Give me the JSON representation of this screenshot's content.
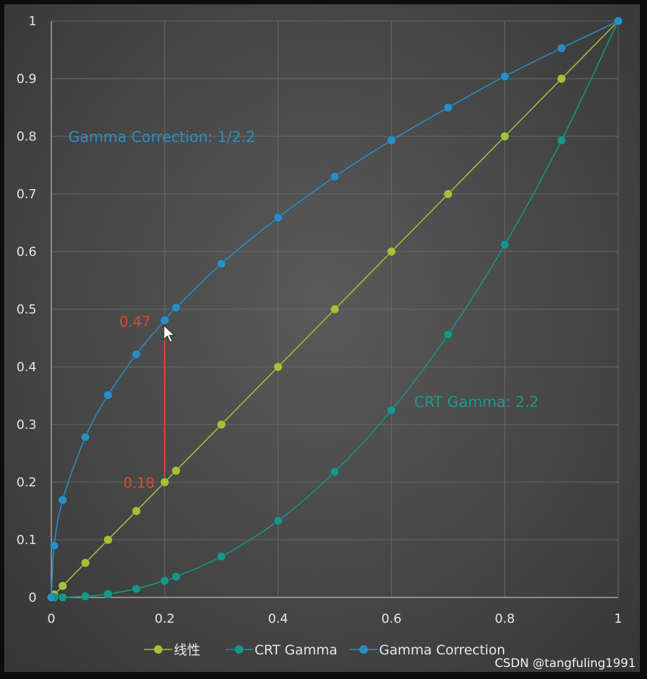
{
  "chart_data": {
    "type": "line",
    "title": "",
    "xlabel": "",
    "ylabel": "",
    "xlim": [
      0,
      1
    ],
    "ylim": [
      0,
      1
    ],
    "grid": true,
    "legend_position": "bottom",
    "x_ticks": [
      "0",
      "0.2",
      "0.4",
      "0.6",
      "0.8",
      "1"
    ],
    "x_tick_values": [
      0,
      0.2,
      0.4,
      0.6,
      0.8,
      1
    ],
    "y_ticks": [
      "0",
      "0.1",
      "0.2",
      "0.3",
      "0.4",
      "0.5",
      "0.6",
      "0.7",
      "0.8",
      "0.9",
      "1"
    ],
    "y_tick_values": [
      0,
      0.1,
      0.2,
      0.3,
      0.4,
      0.5,
      0.6,
      0.7,
      0.8,
      0.9,
      1
    ],
    "series": [
      {
        "name": "线性",
        "color": "#a3c23a",
        "x": [
          0,
          0.005,
          0.02,
          0.06,
          0.1,
          0.15,
          0.2,
          0.22,
          0.3,
          0.4,
          0.5,
          0.6,
          0.7,
          0.8,
          0.9,
          1
        ],
        "y": [
          0,
          0.005,
          0.02,
          0.06,
          0.1,
          0.15,
          0.2,
          0.22,
          0.3,
          0.4,
          0.5,
          0.6,
          0.7,
          0.8,
          0.9,
          1
        ]
      },
      {
        "name": "CRT Gamma",
        "color": "#16978a",
        "x": [
          0,
          0.005,
          0.02,
          0.06,
          0.1,
          0.15,
          0.2,
          0.22,
          0.3,
          0.4,
          0.5,
          0.6,
          0.7,
          0.8,
          0.9,
          1
        ],
        "y": [
          0,
          0,
          0.0002,
          0.002,
          0.006,
          0.015,
          0.029,
          0.036,
          0.071,
          0.133,
          0.218,
          0.325,
          0.456,
          0.612,
          0.793,
          1
        ]
      },
      {
        "name": "Gamma Correction",
        "color": "#2a8ec6",
        "x": [
          0,
          0.005,
          0.02,
          0.06,
          0.1,
          0.15,
          0.2,
          0.22,
          0.3,
          0.4,
          0.5,
          0.6,
          0.7,
          0.8,
          0.9,
          1
        ],
        "y": [
          0,
          0.09,
          0.169,
          0.278,
          0.351,
          0.422,
          0.481,
          0.503,
          0.579,
          0.659,
          0.73,
          0.793,
          0.85,
          0.904,
          0.953,
          1
        ]
      }
    ],
    "annotations": [
      {
        "text": "Gamma Correction: 1/2.2",
        "x": 0.03,
        "y": 0.8,
        "color": "#2a8fc7"
      },
      {
        "text": "CRT Gamma: 2.2",
        "x": 0.64,
        "y": 0.34,
        "color": "#1b9a8a"
      },
      {
        "text": "0.47",
        "x": 0.12,
        "y": 0.48,
        "color": "#e0482c"
      },
      {
        "text": "0.18",
        "x": 0.127,
        "y": 0.2,
        "color": "#e0482c"
      }
    ],
    "marker_line": {
      "x": 0.2,
      "y_from": 0.21,
      "y_to": 0.47,
      "color": "#e0482c"
    }
  },
  "watermark": "CSDN @tangfuling1991"
}
